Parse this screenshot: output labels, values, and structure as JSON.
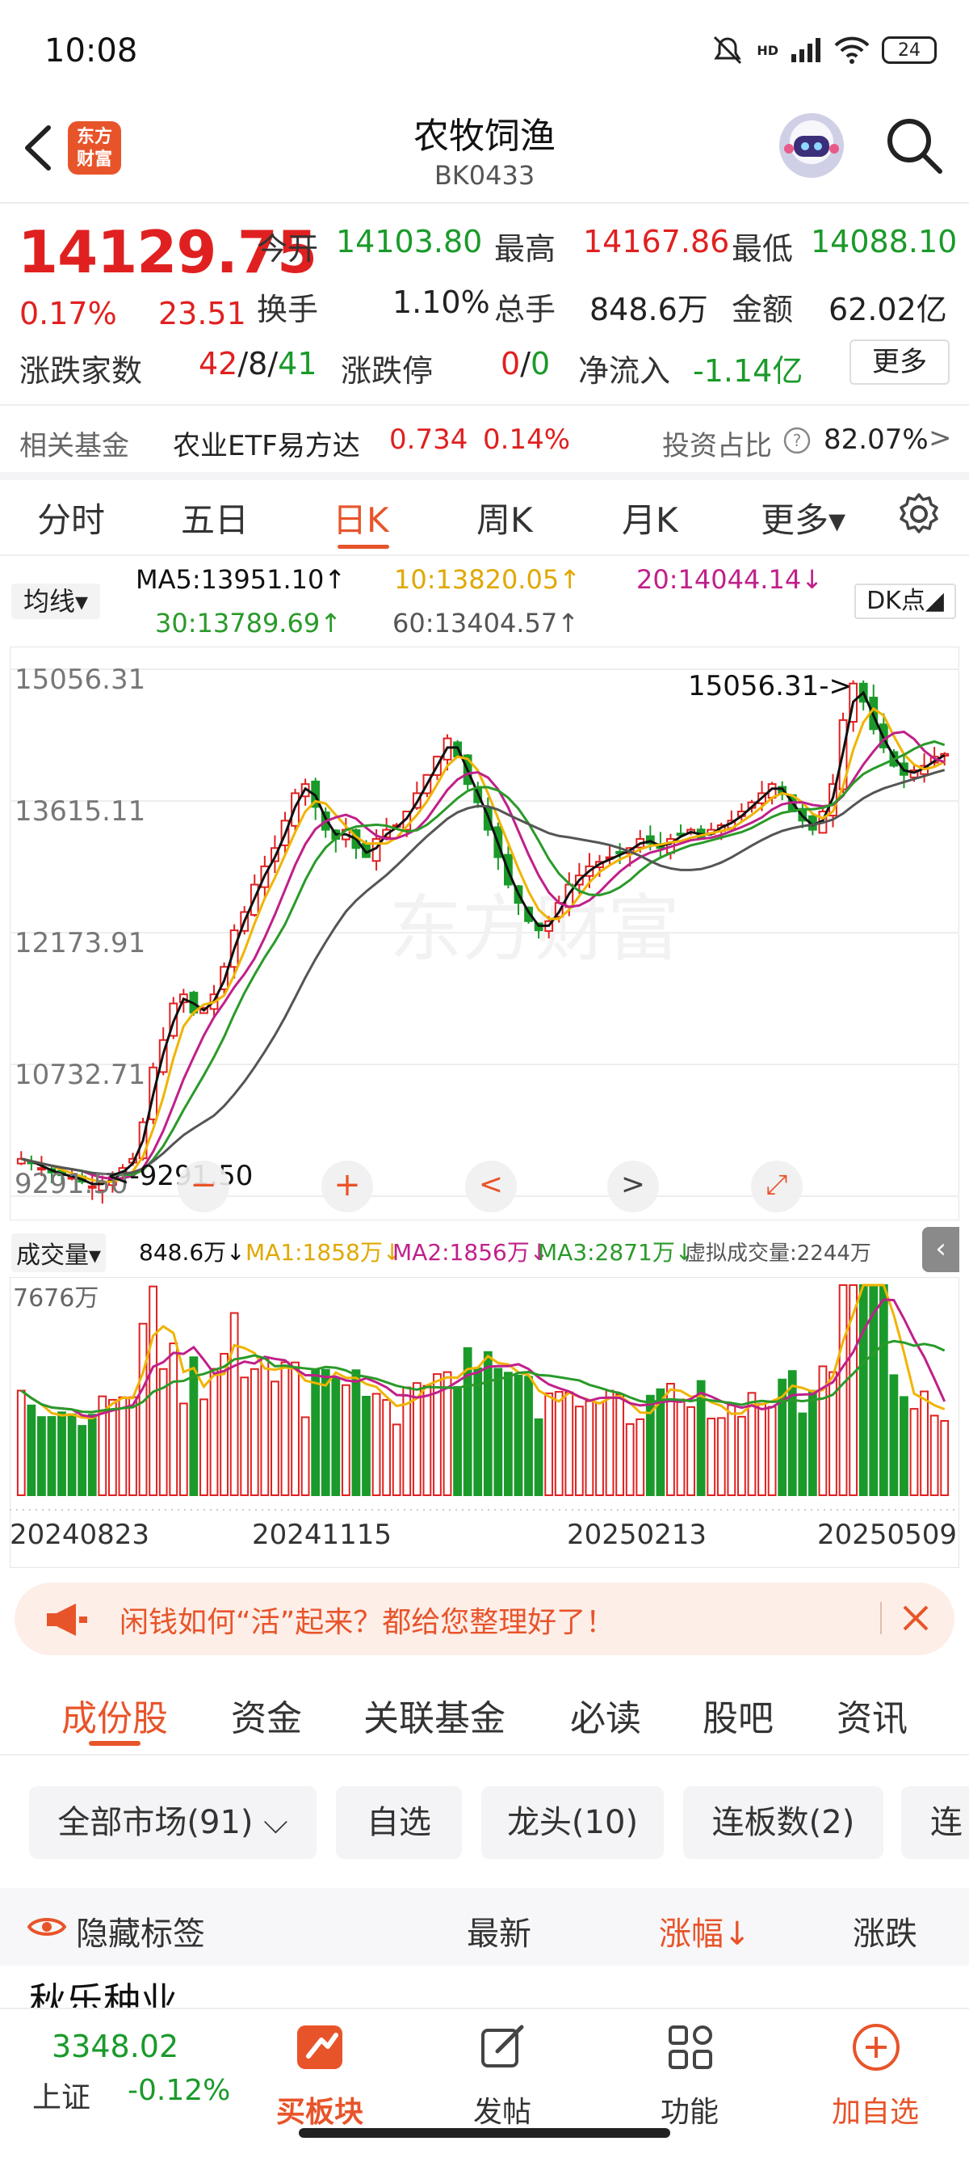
{
  "status_bar": {
    "time": "10:08",
    "battery": "24",
    "network_label": "HD"
  },
  "header": {
    "logo_text": "东方财富",
    "title": "农牧饲渔",
    "code": "BK0433"
  },
  "quote": {
    "price": "14129.75",
    "change_pct": "0.17%",
    "change": "23.51",
    "open_label": "今开",
    "open": "14103.80",
    "high_label": "最高",
    "high": "14167.86",
    "low_label": "最低",
    "low": "14088.10",
    "turnover_label": "换手",
    "turnover": "1.10%",
    "volume_label": "总手",
    "volume": "848.6万",
    "amount_label": "金额",
    "amount": "62.02亿",
    "breadth_label": "涨跌家数",
    "breadth_up": "42",
    "breadth_sep1": "/",
    "breadth_flat": "8",
    "breadth_sep2": "/",
    "breadth_down": "41",
    "limit_label": "涨跌停",
    "limit_up": "0",
    "limit_sep": "/",
    "limit_down": "0",
    "netflow_label": "净流入",
    "netflow": "-1.14亿",
    "more_label": "更多"
  },
  "fund_row": {
    "label": "相关基金",
    "fund_name": "农业ETF易方达",
    "fund_price": "0.734",
    "fund_pct": "0.14%",
    "ratio_label": "投资占比",
    "ratio": "82.07%",
    "arrow": ">"
  },
  "kline_tabs": [
    {
      "label": "分时"
    },
    {
      "label": "五日"
    },
    {
      "label": "日K"
    },
    {
      "label": "周K"
    },
    {
      "label": "月K"
    },
    {
      "label": "更多▾"
    }
  ],
  "ma_legend": {
    "selector": "均线▾",
    "ma5": "MA5:13951.10↑",
    "ma10": "10:13820.05↑",
    "ma20": "20:14044.14↓",
    "ma30": "30:13789.69↑",
    "ma60": "60:13404.57↑",
    "dk_button": "DK点◢"
  },
  "volume_legend": {
    "selector": "成交量▾",
    "vol": "848.6万↓",
    "ma1": "MA1:1858万↓",
    "ma2": "MA2:1856万↓",
    "ma3": "MA3:2871万↓",
    "virtual": "虚拟成交量:2244万",
    "vol_max": "7676万"
  },
  "chart_data": {
    "type": "candlestick",
    "y_ticks": [
      "15056.31",
      "13615.11",
      "12173.91",
      "10732.71",
      "9291.50"
    ],
    "ylim": [
      9291.5,
      15056.31
    ],
    "annotations": [
      {
        "text": "15056.31->",
        "value": 15056.31
      },
      {
        "text": "<-9291.50",
        "value": 9291.5
      }
    ],
    "x_ticks": [
      "20240823",
      "20241115",
      "20250213",
      "20250509"
    ],
    "close_series_approx": [
      9700,
      9650,
      9600,
      9550,
      9520,
      9500,
      9450,
      9400,
      9450,
      9500,
      9600,
      9700,
      10100,
      10700,
      11000,
      11400,
      11500,
      11300,
      11350,
      11500,
      11800,
      12200,
      12400,
      12700,
      12900,
      13100,
      13400,
      13700,
      13800,
      13550,
      13300,
      13200,
      13300,
      13100,
      13000,
      13200,
      13300,
      13350,
      13500,
      13700,
      13900,
      14100,
      14300,
      14100,
      13800,
      13600,
      13300,
      13000,
      12700,
      12500,
      12300,
      12200,
      12300,
      12500,
      12700,
      12800,
      12900,
      12950,
      13000,
      13050,
      13100,
      13200,
      13150,
      13100,
      13200,
      13250,
      13300,
      13200,
      13300,
      13350,
      13400,
      13500,
      13600,
      13700,
      13800,
      13700,
      13500,
      13400,
      13300,
      13500,
      13800,
      14500,
      14900,
      14700,
      14400,
      14200,
      14000,
      13900,
      13950,
      14000,
      14100,
      14130
    ],
    "colors": {
      "up": "#e02020",
      "down": "#1a9a2a",
      "ma5": "#111111",
      "ma10": "#f0b400",
      "ma20": "#c0208a",
      "ma30": "#2a9a2a",
      "ma60": "#555555"
    }
  },
  "controls": {
    "zoom_out": "−",
    "zoom_in": "+",
    "left": "<",
    "right": ">",
    "fullscreen": "⤢"
  },
  "banner": {
    "text": "闲钱如何“活”起来？都给您整理好了！"
  },
  "sub_tabs": [
    {
      "label": "成份股"
    },
    {
      "label": "资金"
    },
    {
      "label": "关联基金"
    },
    {
      "label": "必读"
    },
    {
      "label": "股吧"
    },
    {
      "label": "资讯"
    }
  ],
  "chips": [
    {
      "label": "全部市场(91) ⌵"
    },
    {
      "label": "自选"
    },
    {
      "label": "龙头(10)"
    },
    {
      "label": "连板数(2)"
    },
    {
      "label": "连"
    }
  ],
  "list_header": {
    "hide_tags": "隐藏标签",
    "latest": "最新",
    "change_pct": "涨幅↓",
    "change": "涨跌"
  },
  "first_row": {
    "name": "秋乐种业"
  },
  "bottom_nav": {
    "index_value": "3348.02",
    "index_name": "上证",
    "index_pct": "-0.12%",
    "items": [
      {
        "label": "买板块"
      },
      {
        "label": "发帖"
      },
      {
        "label": "功能"
      },
      {
        "label": "加自选"
      }
    ]
  }
}
